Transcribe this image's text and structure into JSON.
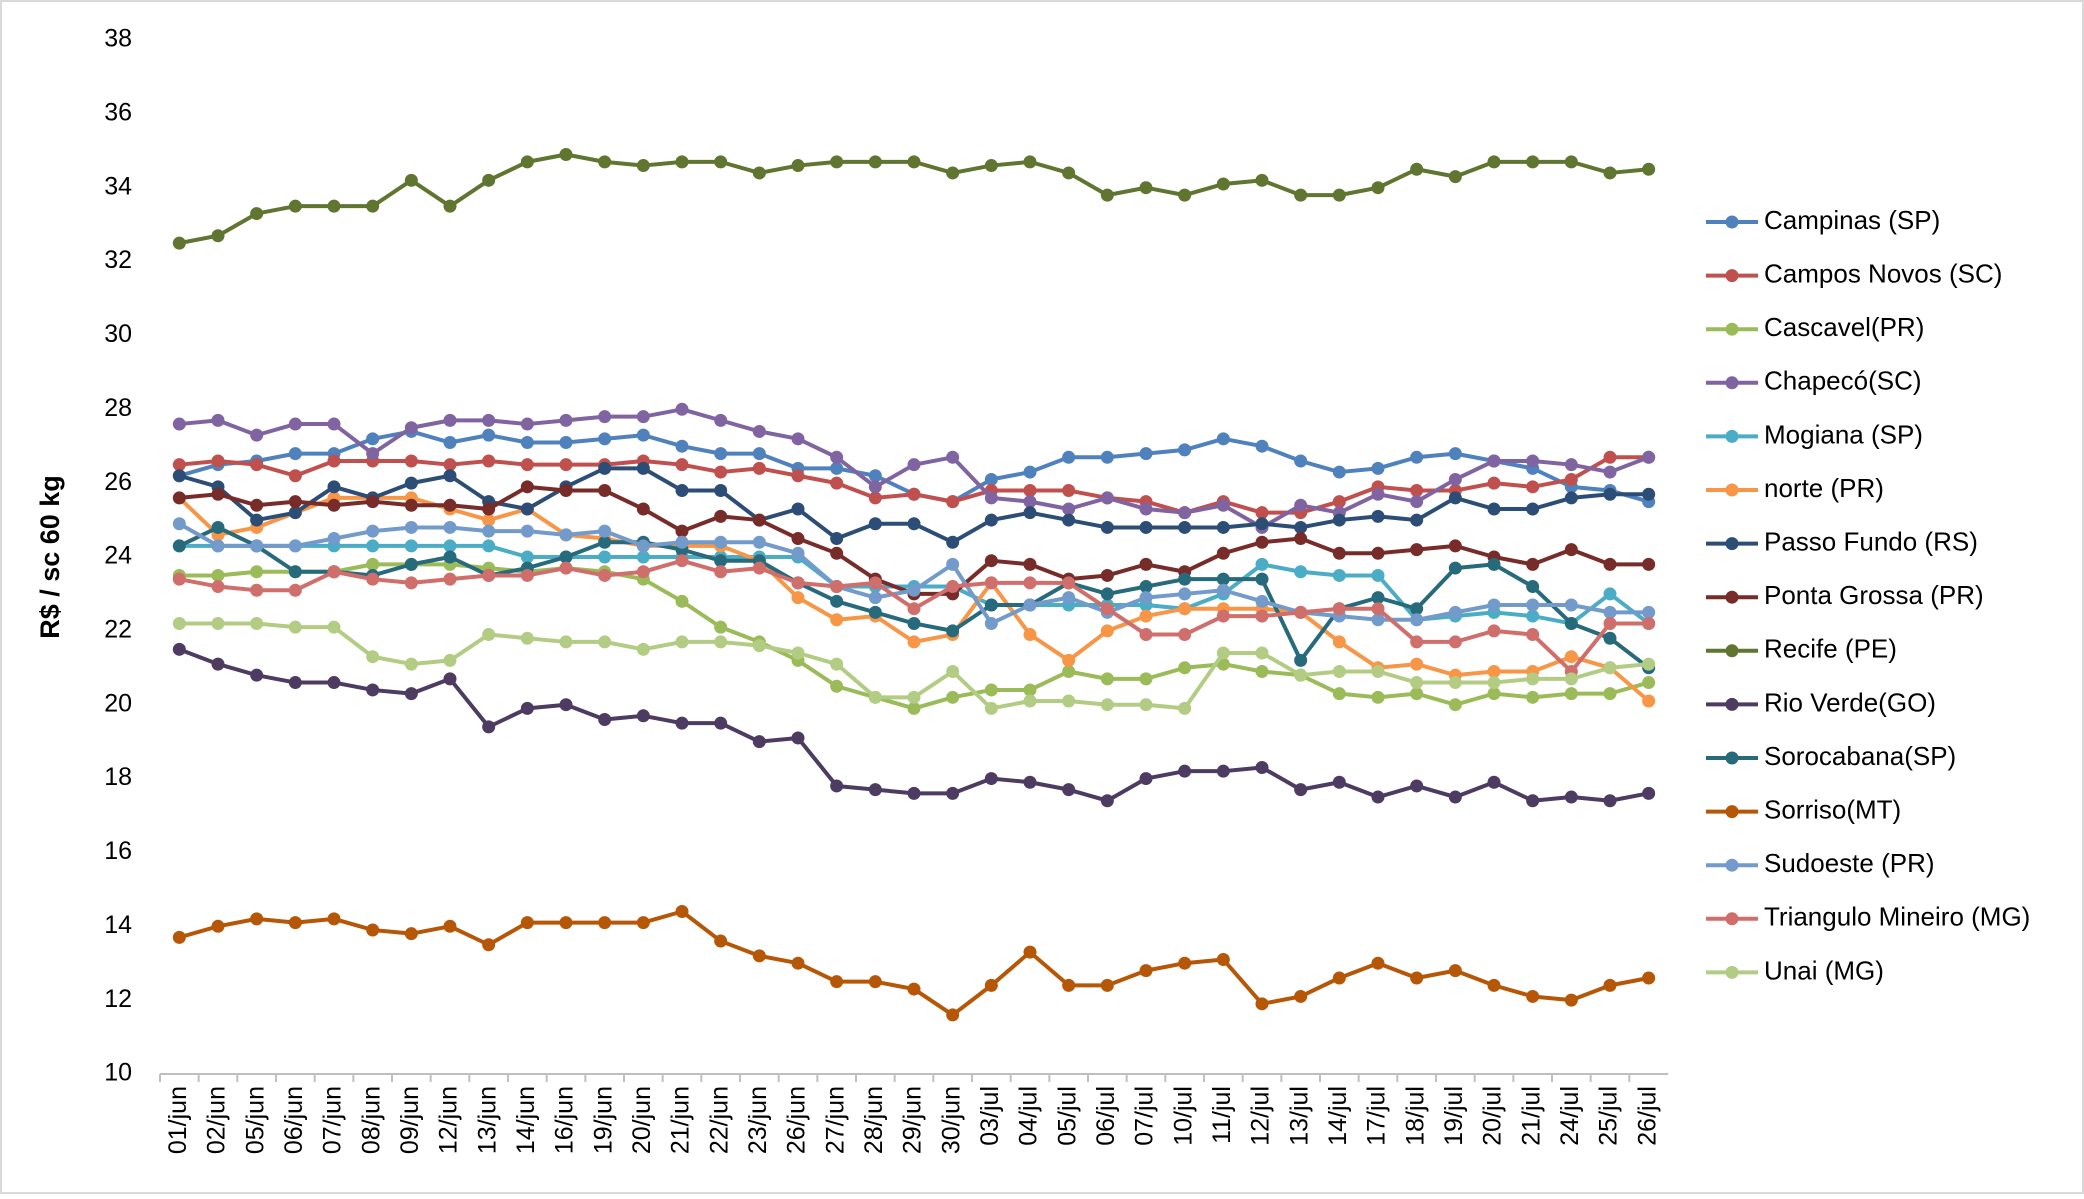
{
  "chart_data": {
    "type": "line",
    "y_label": "R$ / sc 60 kg",
    "categories": [
      "01/jun",
      "02/jun",
      "05/jun",
      "06/jun",
      "07/jun",
      "08/jun",
      "09/jun",
      "12/jun",
      "13/jun",
      "14/jun",
      "16/jun",
      "19/jun",
      "20/jun",
      "21/jun",
      "22/jun",
      "23/jun",
      "26/jun",
      "27/jun",
      "28/jun",
      "29/jun",
      "30/jun",
      "03/jul",
      "04/jul",
      "05/jul",
      "06/jul",
      "07/jul",
      "10/jul",
      "11/jul",
      "12/jul",
      "13/jul",
      "14/jul",
      "17/jul",
      "18/jul",
      "19/jul",
      "20/jul",
      "21/jul",
      "24/jul",
      "25/jul",
      "26/jul"
    ],
    "ylim": [
      10,
      38
    ],
    "yticks": [
      10,
      12,
      14,
      16,
      18,
      20,
      22,
      24,
      26,
      28,
      30,
      32,
      34,
      36,
      38
    ],
    "grid": false,
    "legend": "right",
    "series": [
      {
        "name": "Campinas (SP)",
        "color": "#4f81bd",
        "values": [
          26.2,
          26.5,
          26.6,
          26.8,
          26.8,
          27.2,
          27.4,
          27.1,
          27.3,
          27.1,
          27.1,
          27.2,
          27.3,
          27.0,
          26.8,
          26.8,
          26.4,
          26.4,
          26.2,
          25.7,
          25.5,
          26.1,
          26.3,
          26.7,
          26.7,
          26.8,
          26.9,
          27.2,
          27.0,
          26.6,
          26.3,
          26.4,
          26.7,
          26.8,
          26.6,
          26.4,
          25.9,
          25.8,
          25.5
        ]
      },
      {
        "name": "Campos Novos (SC)",
        "color": "#c0504d",
        "values": [
          26.5,
          26.6,
          26.5,
          26.2,
          26.6,
          26.6,
          26.6,
          26.5,
          26.6,
          26.5,
          26.5,
          26.5,
          26.6,
          26.5,
          26.3,
          26.4,
          26.2,
          26.0,
          25.6,
          25.7,
          25.5,
          25.8,
          25.8,
          25.8,
          25.6,
          25.5,
          25.2,
          25.5,
          25.2,
          25.2,
          25.5,
          25.9,
          25.8,
          25.8,
          26.0,
          25.9,
          26.1,
          26.7,
          26.7
        ]
      },
      {
        "name": "Cascavel(PR)",
        "color": "#9bbb59",
        "values": [
          23.5,
          23.5,
          23.6,
          23.6,
          23.6,
          23.8,
          23.8,
          23.8,
          23.7,
          23.6,
          23.7,
          23.6,
          23.4,
          22.8,
          22.1,
          21.7,
          21.2,
          20.5,
          20.2,
          19.9,
          20.2,
          20.4,
          20.4,
          20.9,
          20.7,
          20.7,
          21.0,
          21.1,
          20.9,
          20.8,
          20.3,
          20.2,
          20.3,
          20.0,
          20.3,
          20.2,
          20.3,
          20.3,
          20.6
        ]
      },
      {
        "name": "Chapecó(SC)",
        "color": "#8064a2",
        "values": [
          27.6,
          27.7,
          27.3,
          27.6,
          27.6,
          26.8,
          27.5,
          27.7,
          27.7,
          27.6,
          27.7,
          27.8,
          27.8,
          28.0,
          27.7,
          27.4,
          27.2,
          26.7,
          25.9,
          26.5,
          26.7,
          25.6,
          25.5,
          25.3,
          25.6,
          25.3,
          25.2,
          25.4,
          24.8,
          25.4,
          25.2,
          25.7,
          25.5,
          26.1,
          26.6,
          26.6,
          26.5,
          26.3,
          26.7
        ]
      },
      {
        "name": "Mogiana (SP)",
        "color": "#4bacc6",
        "values": [
          24.3,
          24.3,
          24.3,
          24.3,
          24.3,
          24.3,
          24.3,
          24.3,
          24.3,
          24.0,
          24.0,
          24.0,
          24.0,
          24.0,
          24.0,
          24.0,
          24.0,
          23.2,
          23.2,
          23.2,
          23.2,
          22.7,
          22.7,
          22.7,
          22.7,
          22.7,
          22.6,
          23.0,
          23.8,
          23.6,
          23.5,
          23.5,
          22.3,
          22.4,
          22.5,
          22.4,
          22.2,
          23.0,
          22.2
        ]
      },
      {
        "name": "norte (PR)",
        "color": "#f79646",
        "values": [
          25.6,
          24.6,
          24.8,
          25.2,
          25.6,
          25.6,
          25.6,
          25.3,
          25.0,
          25.3,
          24.6,
          24.5,
          24.3,
          24.3,
          24.3,
          23.9,
          22.9,
          22.3,
          22.4,
          21.7,
          21.9,
          23.3,
          21.9,
          21.2,
          22.0,
          22.4,
          22.6,
          22.6,
          22.6,
          22.5,
          21.7,
          21.0,
          21.1,
          20.8,
          20.9,
          20.9,
          21.3,
          21.0,
          20.1
        ]
      },
      {
        "name": "Passo Fundo (RS)",
        "color": "#2c4d75",
        "values": [
          26.2,
          25.9,
          25.0,
          25.2,
          25.9,
          25.6,
          26.0,
          26.2,
          25.5,
          25.3,
          25.9,
          26.4,
          26.4,
          25.8,
          25.8,
          25.0,
          25.3,
          24.5,
          24.9,
          24.9,
          24.4,
          25.0,
          25.2,
          25.0,
          24.8,
          24.8,
          24.8,
          24.8,
          24.9,
          24.8,
          25.0,
          25.1,
          25.0,
          25.6,
          25.3,
          25.3,
          25.6,
          25.7,
          25.7
        ]
      },
      {
        "name": "Ponta Grossa (PR)",
        "color": "#772c2a",
        "values": [
          25.6,
          25.7,
          25.4,
          25.5,
          25.4,
          25.5,
          25.4,
          25.4,
          25.3,
          25.9,
          25.8,
          25.8,
          25.3,
          24.7,
          25.1,
          25.0,
          24.5,
          24.1,
          23.4,
          23.0,
          23.0,
          23.9,
          23.8,
          23.4,
          23.5,
          23.8,
          23.6,
          24.1,
          24.4,
          24.5,
          24.1,
          24.1,
          24.2,
          24.3,
          24.0,
          23.8,
          24.2,
          23.8,
          23.8
        ]
      },
      {
        "name": "Recife (PE)",
        "color": "#5f7530",
        "values": [
          32.5,
          32.7,
          33.3,
          33.5,
          33.5,
          33.5,
          34.2,
          33.5,
          34.2,
          34.7,
          34.9,
          34.7,
          34.6,
          34.7,
          34.7,
          34.4,
          34.6,
          34.7,
          34.7,
          34.7,
          34.4,
          34.6,
          34.7,
          34.4,
          33.8,
          34.0,
          33.8,
          34.1,
          34.2,
          33.8,
          33.8,
          34.0,
          34.5,
          34.3,
          34.7,
          34.7,
          34.7,
          34.4,
          34.5
        ]
      },
      {
        "name": "Rio Verde(GO)",
        "color": "#4d3b62",
        "values": [
          21.5,
          21.1,
          20.8,
          20.6,
          20.6,
          20.4,
          20.3,
          20.7,
          19.4,
          19.9,
          20.0,
          19.6,
          19.7,
          19.5,
          19.5,
          19.0,
          19.1,
          17.8,
          17.7,
          17.6,
          17.6,
          18.0,
          17.9,
          17.7,
          17.4,
          18.0,
          18.2,
          18.2,
          18.3,
          17.7,
          17.9,
          17.5,
          17.8,
          17.5,
          17.9,
          17.4,
          17.5,
          17.4,
          17.6
        ]
      },
      {
        "name": "Sorocabana(SP)",
        "color": "#276a7c",
        "values": [
          24.3,
          24.8,
          24.3,
          23.6,
          23.6,
          23.5,
          23.8,
          24.0,
          23.5,
          23.7,
          24.0,
          24.4,
          24.4,
          24.2,
          23.9,
          23.9,
          23.3,
          22.8,
          22.5,
          22.2,
          22.0,
          22.7,
          22.7,
          23.3,
          23.0,
          23.2,
          23.4,
          23.4,
          23.4,
          21.2,
          22.6,
          22.9,
          22.6,
          23.7,
          23.8,
          23.2,
          22.2,
          21.8,
          21.0
        ]
      },
      {
        "name": "Sorriso(MT)",
        "color": "#b65708",
        "values": [
          13.7,
          14.0,
          14.2,
          14.1,
          14.2,
          13.9,
          13.8,
          14.0,
          13.5,
          14.1,
          14.1,
          14.1,
          14.1,
          14.4,
          13.6,
          13.2,
          13.0,
          12.5,
          12.5,
          12.3,
          11.6,
          12.4,
          13.3,
          12.4,
          12.4,
          12.8,
          13.0,
          13.1,
          11.9,
          12.1,
          12.6,
          13.0,
          12.6,
          12.8,
          12.4,
          12.1,
          12.0,
          12.4,
          12.6
        ]
      },
      {
        "name": "Sudoeste (PR)",
        "color": "#729aca",
        "values": [
          24.9,
          24.3,
          24.3,
          24.3,
          24.5,
          24.7,
          24.8,
          24.8,
          24.7,
          24.7,
          24.6,
          24.7,
          24.3,
          24.4,
          24.4,
          24.4,
          24.1,
          23.2,
          22.9,
          23.1,
          23.8,
          22.2,
          22.7,
          22.9,
          22.5,
          22.9,
          23.0,
          23.1,
          22.8,
          22.5,
          22.4,
          22.3,
          22.3,
          22.5,
          22.7,
          22.7,
          22.7,
          22.5,
          22.5
        ]
      },
      {
        "name": "Triangulo Mineiro (MG)",
        "color": "#d06e6b",
        "values": [
          23.4,
          23.2,
          23.1,
          23.1,
          23.6,
          23.4,
          23.3,
          23.4,
          23.5,
          23.5,
          23.7,
          23.5,
          23.6,
          23.9,
          23.6,
          23.7,
          23.3,
          23.2,
          23.3,
          22.6,
          23.2,
          23.3,
          23.3,
          23.3,
          22.6,
          21.9,
          21.9,
          22.4,
          22.4,
          22.5,
          22.6,
          22.6,
          21.7,
          21.7,
          22.0,
          21.9,
          20.9,
          22.2,
          22.2
        ]
      },
      {
        "name": "Unai (MG)",
        "color": "#b3cc83",
        "values": [
          22.2,
          22.2,
          22.2,
          22.1,
          22.1,
          21.3,
          21.1,
          21.2,
          21.9,
          21.8,
          21.7,
          21.7,
          21.5,
          21.7,
          21.7,
          21.6,
          21.4,
          21.1,
          20.2,
          20.2,
          20.9,
          19.9,
          20.1,
          20.1,
          20.0,
          20.0,
          19.9,
          21.4,
          21.4,
          20.8,
          20.9,
          20.9,
          20.6,
          20.6,
          20.6,
          20.7,
          20.7,
          21.0,
          21.1
        ]
      }
    ]
  }
}
